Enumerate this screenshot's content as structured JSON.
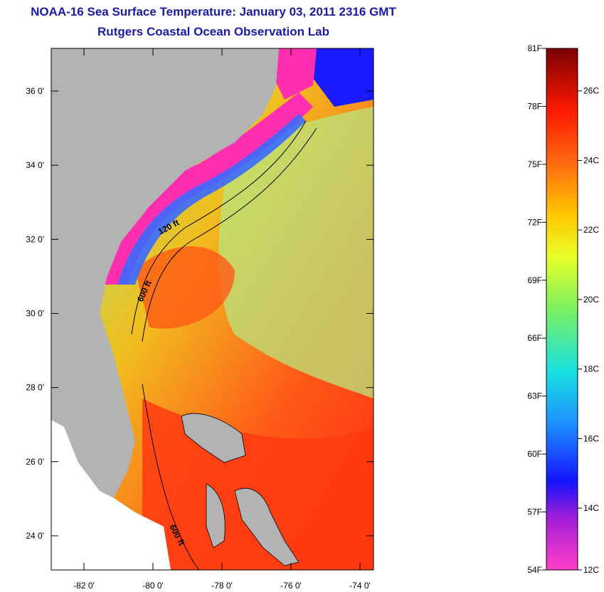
{
  "title": "NOAA-16 Sea Surface Temperature:  January 03, 2011 2316 GMT",
  "subtitle": "Rutgers Coastal Ocean Observation Lab",
  "map": {
    "lat_labels": [
      "36 0'",
      "34 0'",
      "32 0'",
      "30 0'",
      "28 0'",
      "26 0'",
      "24 0'"
    ],
    "lat_values": [
      36,
      34,
      32,
      30,
      28,
      26,
      24
    ],
    "lon_labels": [
      "-82 0'",
      "-80 0'",
      "-78 0'",
      "-76 0'",
      "-74 0'"
    ],
    "lon_values": [
      -82,
      -80,
      -78,
      -76,
      -74
    ],
    "contour_labels": [
      "120 ft",
      "600 ft",
      "600 ft"
    ],
    "colors": {
      "land": "#b3b3b3",
      "ocean_warm": "#ff4a1a",
      "ocean_mid": "#f5d400",
      "cold_coastal": "#ff2fb0",
      "cold_north": "#1a1aff"
    }
  },
  "colorbar": {
    "f_labels": [
      "81F",
      "78F",
      "75F",
      "72F",
      "69F",
      "66F",
      "63F",
      "60F",
      "57F",
      "54F"
    ],
    "f_values": [
      81,
      78,
      75,
      72,
      69,
      66,
      63,
      60,
      57,
      54
    ],
    "c_labels": [
      "26C",
      "24C",
      "22C",
      "20C",
      "18C",
      "16C",
      "14C",
      "12C"
    ],
    "c_values": [
      26,
      24,
      22,
      20,
      18,
      16,
      14,
      12
    ],
    "range_f": [
      54,
      81
    ]
  }
}
